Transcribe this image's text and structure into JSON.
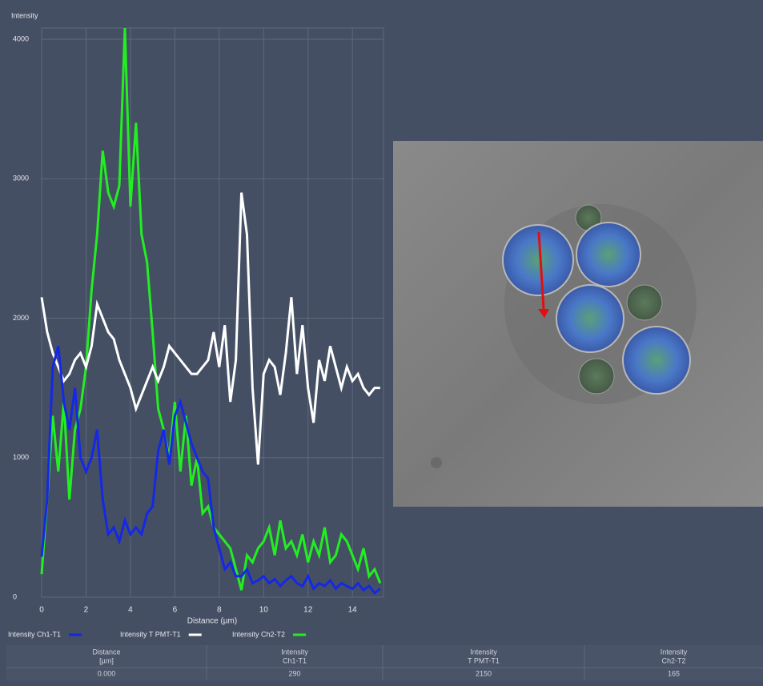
{
  "chart_data": {
    "type": "line",
    "y_axis_title": "Intensity",
    "x_axis_title": "Distance (µm)",
    "x": [
      0,
      0.25,
      0.5,
      0.75,
      1,
      1.25,
      1.5,
      1.75,
      2,
      2.25,
      2.5,
      2.75,
      3,
      3.25,
      3.5,
      3.75,
      4,
      4.25,
      4.5,
      4.75,
      5,
      5.25,
      5.5,
      5.75,
      6,
      6.25,
      6.5,
      6.75,
      7,
      7.25,
      7.5,
      7.75,
      8,
      8.25,
      8.5,
      8.75,
      9,
      9.25,
      9.5,
      9.75,
      10,
      10.25,
      10.5,
      10.75,
      11,
      11.25,
      11.5,
      11.75,
      12,
      12.25,
      12.5,
      12.75,
      13,
      13.25,
      13.5,
      13.75,
      14,
      14.25,
      14.5,
      14.75,
      15,
      15.25
    ],
    "series": [
      {
        "name": "Intensity Ch1-T1",
        "color": "#1428e6",
        "values": [
          290,
          700,
          1650,
          1800,
          1400,
          1200,
          1500,
          1000,
          900,
          1000,
          1200,
          700,
          450,
          500,
          400,
          550,
          450,
          500,
          450,
          600,
          650,
          1050,
          1200,
          950,
          1300,
          1400,
          1250,
          1100,
          1000,
          900,
          850,
          500,
          350,
          200,
          250,
          150,
          150,
          200,
          100,
          120,
          150,
          100,
          130,
          80,
          120,
          150,
          100,
          80,
          150,
          60,
          100,
          80,
          120,
          60,
          100,
          80,
          60,
          100,
          50,
          80,
          30,
          60
        ]
      },
      {
        "name": "Intensity T PMT-T1",
        "color": "#ffffff",
        "values": [
          2150,
          1900,
          1750,
          1650,
          1550,
          1600,
          1700,
          1750,
          1650,
          1800,
          2100,
          2000,
          1900,
          1850,
          1700,
          1600,
          1500,
          1350,
          1450,
          1550,
          1650,
          1550,
          1650,
          1800,
          1750,
          1700,
          1650,
          1600,
          1600,
          1650,
          1700,
          1900,
          1650,
          1950,
          1400,
          1700,
          2900,
          2600,
          1500,
          950,
          1600,
          1700,
          1650,
          1450,
          1750,
          2150,
          1600,
          1950,
          1500,
          1250,
          1700,
          1550,
          1800,
          1650,
          1500,
          1650,
          1550,
          1600,
          1500,
          1450,
          1500,
          1500
        ]
      },
      {
        "name": "Intensity Ch2-T2",
        "color": "#22ee22",
        "values": [
          165,
          700,
          1300,
          900,
          1400,
          700,
          1200,
          1350,
          1650,
          2200,
          2600,
          3200,
          2900,
          2800,
          2950,
          4080,
          2800,
          3400,
          2600,
          2400,
          1900,
          1350,
          1200,
          1000,
          1400,
          900,
          1300,
          800,
          1000,
          600,
          650,
          500,
          450,
          400,
          350,
          200,
          50,
          300,
          250,
          350,
          400,
          500,
          300,
          550,
          350,
          400,
          300,
          450,
          250,
          400,
          300,
          500,
          250,
          300,
          450,
          400,
          300,
          200,
          350,
          150,
          200,
          100
        ]
      }
    ],
    "xlim": [
      0,
      15.4
    ],
    "xticks": [
      0,
      2,
      4,
      6,
      8,
      10,
      12,
      14
    ],
    "ylim": [
      0,
      4080
    ],
    "yticks": [
      0,
      1000,
      2000,
      3000,
      4000
    ],
    "grid": true
  },
  "table": {
    "header": [
      [
        "Distance",
        "[µm]"
      ],
      [
        "Intensity",
        "Ch1-T1"
      ],
      [
        "Intensity",
        "T PMT-T1"
      ],
      [
        "Intensity",
        "Ch2-T2"
      ]
    ],
    "rows": [
      [
        "0.000",
        "290",
        "2150",
        "165"
      ]
    ]
  }
}
